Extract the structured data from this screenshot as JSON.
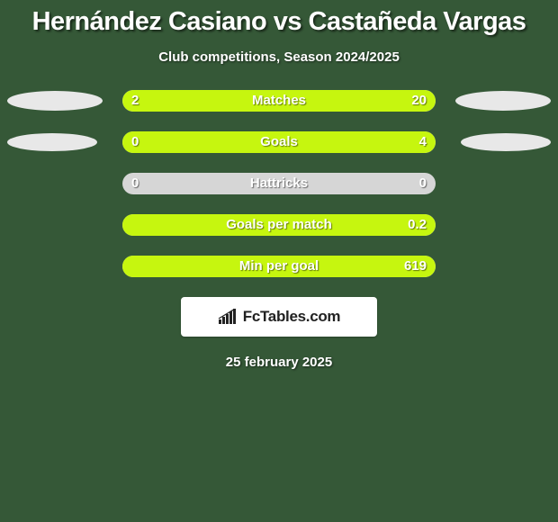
{
  "background_color": "#355837",
  "title": {
    "text": "Hernández Casiano vs Castañeda Vargas",
    "fontsize": 29,
    "color": "#ffffff"
  },
  "subtitle": {
    "text": "Club competitions, Season 2024/2025",
    "fontsize": 15,
    "color": "#ffffff"
  },
  "stats": {
    "track_color": "#d6d6d6",
    "fill_color": "#c6f60f",
    "label_fontsize": 15,
    "value_fontsize": 15,
    "rows": [
      {
        "label": "Matches",
        "left_value": "2",
        "right_value": "20",
        "left_pct": 9,
        "right_pct": 91,
        "disc_left_w": 106,
        "disc_left_h": 22,
        "disc_right_w": 106,
        "disc_right_h": 22
      },
      {
        "label": "Goals",
        "left_value": "0",
        "right_value": "4",
        "left_pct": 0,
        "right_pct": 100,
        "disc_left_w": 100,
        "disc_left_h": 20,
        "disc_right_w": 100,
        "disc_right_h": 20
      },
      {
        "label": "Hattricks",
        "left_value": "0",
        "right_value": "0",
        "left_pct": 0,
        "right_pct": 0,
        "disc_left_w": 0,
        "disc_left_h": 0,
        "disc_right_w": 0,
        "disc_right_h": 0
      },
      {
        "label": "Goals per match",
        "left_value": "",
        "right_value": "0.2",
        "left_pct": 0,
        "right_pct": 100,
        "disc_left_w": 0,
        "disc_left_h": 0,
        "disc_right_w": 0,
        "disc_right_h": 0
      },
      {
        "label": "Min per goal",
        "left_value": "",
        "right_value": "619",
        "left_pct": 0,
        "right_pct": 100,
        "disc_left_w": 0,
        "disc_left_h": 0,
        "disc_right_w": 0,
        "disc_right_h": 0
      }
    ]
  },
  "logo": {
    "text": "FcTables.com"
  },
  "date": {
    "text": "25 february 2025",
    "fontsize": 15
  }
}
